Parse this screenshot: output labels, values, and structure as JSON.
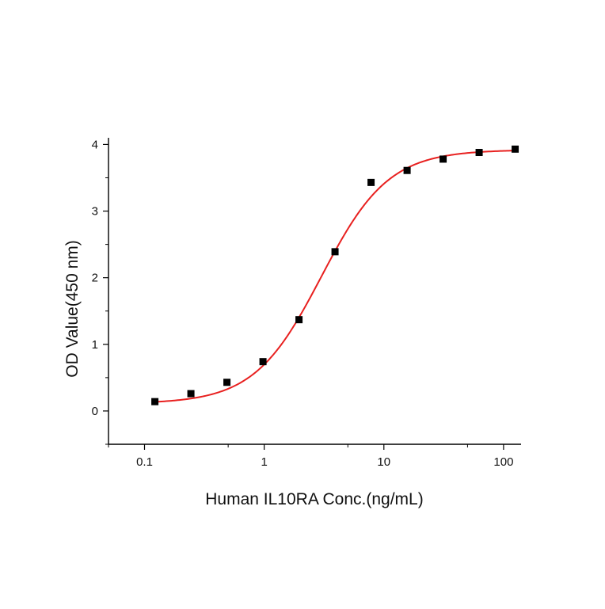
{
  "chart_data": {
    "type": "scatter",
    "title": "",
    "xlabel": "Human IL10RA Conc.(ng/mL)",
    "ylabel": "OD Value(450 nm)",
    "xscale": "log",
    "xlim": [
      0.05,
      140
    ],
    "ylim": [
      -0.5,
      4.1
    ],
    "x_ticks": [
      0.1,
      1,
      10,
      100
    ],
    "x_tick_labels": [
      "0.1",
      "1",
      "10",
      "100"
    ],
    "y_ticks": [
      0,
      1,
      2,
      3,
      4
    ],
    "y_tick_labels": [
      "0",
      "1",
      "2",
      "3",
      "4"
    ],
    "grid": false,
    "legend": "none",
    "series": [
      {
        "marker": "square",
        "color": "#000000",
        "x": [
          0.1221,
          0.2441,
          0.4883,
          0.9766,
          1.953,
          3.906,
          7.813,
          15.63,
          31.25,
          62.5,
          125
        ],
        "y": [
          0.14,
          0.26,
          0.43,
          0.74,
          1.37,
          2.39,
          3.43,
          3.61,
          3.78,
          3.88,
          3.93
        ]
      }
    ],
    "fit": {
      "model": "4PL",
      "color": "#e8201f",
      "bottom": 0.11,
      "top": 3.92,
      "ec50": 3.0,
      "hill": 1.55
    }
  }
}
